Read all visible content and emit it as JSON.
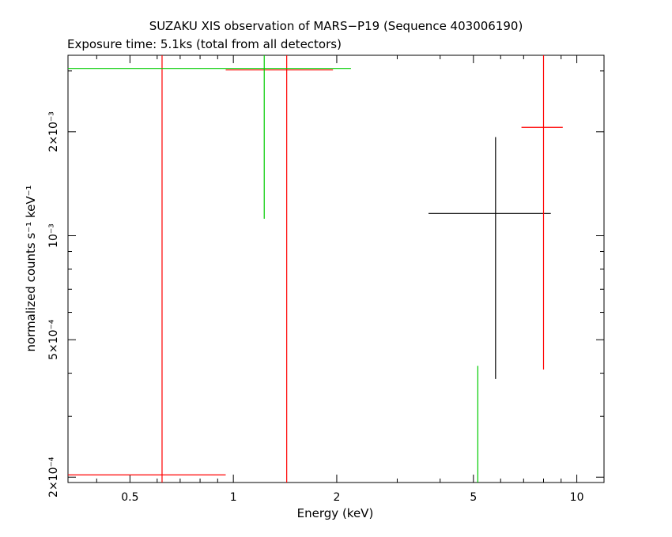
{
  "chart_data": {
    "type": "scatter",
    "title": "SUZAKU XIS observation of MARS−P19 (Sequence 403006190)",
    "subtitle": "Exposure time: 5.1ks (total from all detectors)",
    "xlabel": "Energy (keV)",
    "ylabel": "normalized counts s⁻¹ keV⁻¹",
    "xscale": "log",
    "yscale": "log",
    "xlim": [
      0.33,
      12
    ],
    "ylim": [
      0.000193,
      0.00333
    ],
    "x_ticks": [
      {
        "value": 0.5,
        "label": "0.5"
      },
      {
        "value": 1,
        "label": "1"
      },
      {
        "value": 2,
        "label": "2"
      },
      {
        "value": 5,
        "label": "5"
      },
      {
        "value": 10,
        "label": "10"
      }
    ],
    "y_ticks": [
      {
        "value": 0.0002,
        "label": "2×10⁻⁴"
      },
      {
        "value": 0.0005,
        "label": "5×10⁻⁴"
      },
      {
        "value": 0.001,
        "label": "10⁻³"
      },
      {
        "value": 0.002,
        "label": "2×10⁻³"
      }
    ],
    "grid": false,
    "series": [
      {
        "color": "#000000",
        "points": [
          {
            "x": 5.8,
            "xlo": 3.7,
            "xhi": 8.4,
            "y": 0.00116,
            "ylo": 0.000385,
            "yhi": 0.00193
          }
        ]
      },
      {
        "color": "#ff0000",
        "points": [
          {
            "x": 0.62,
            "xlo": 0.33,
            "xhi": 0.95,
            "y": 0.000203,
            "ylo": 0.000193,
            "yhi": 0.00333
          },
          {
            "x": 1.43,
            "xlo": 0.95,
            "xhi": 1.95,
            "y": 0.00302,
            "ylo": 0.000193,
            "yhi": 0.00333
          },
          {
            "x": 8.0,
            "xlo": 6.9,
            "xhi": 9.1,
            "y": 0.00206,
            "ylo": 0.00041,
            "yhi": 0.00333
          }
        ]
      },
      {
        "color": "#00cc00",
        "points": [
          {
            "x": 1.23,
            "xlo": 0.33,
            "xhi": 2.2,
            "y": 0.00305,
            "ylo": 0.00112,
            "yhi": 0.00333
          },
          {
            "x": 5.15,
            "xlo": 5.15,
            "xhi": 5.15,
            "y": 0.000193,
            "ylo": 0.000193,
            "yhi": 0.00042
          }
        ]
      }
    ]
  }
}
